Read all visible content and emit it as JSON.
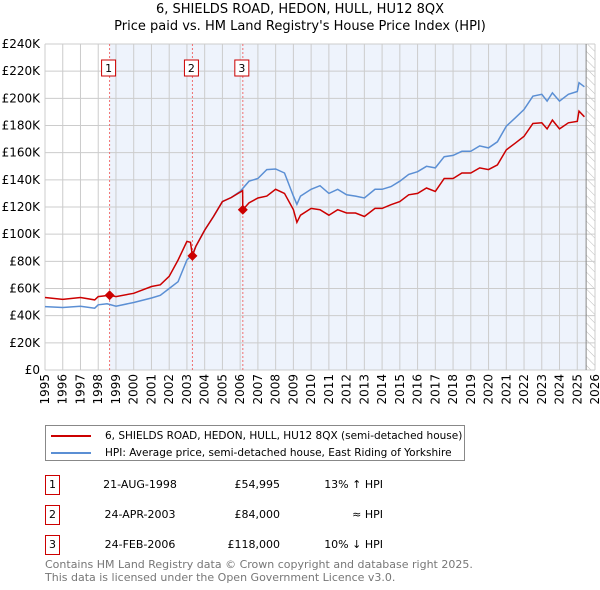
{
  "title_line1": "6, SHIELDS ROAD, HEDON, HULL, HU12 8QX",
  "title_line2": "Price paid vs. HM Land Registry's House Price Index (HPI)",
  "chart_data": {
    "type": "line",
    "xlim": [
      1995,
      2026
    ],
    "ylim": [
      0,
      240000
    ],
    "yticks": [
      0,
      20000,
      40000,
      60000,
      80000,
      100000,
      120000,
      140000,
      160000,
      180000,
      200000,
      220000,
      240000
    ],
    "ytick_labels": [
      "£0",
      "£20K",
      "£40K",
      "£60K",
      "£80K",
      "£100K",
      "£120K",
      "£140K",
      "£160K",
      "£180K",
      "£200K",
      "£220K",
      "£240K"
    ],
    "xticks": [
      1995,
      1996,
      1997,
      1998,
      1999,
      2000,
      2001,
      2002,
      2003,
      2004,
      2005,
      2006,
      2007,
      2008,
      2009,
      2010,
      2011,
      2012,
      2013,
      2014,
      2015,
      2016,
      2017,
      2018,
      2019,
      2020,
      2021,
      2022,
      2023,
      2024,
      2025,
      2026
    ],
    "data_end": 2025.5,
    "series": [
      {
        "name": "6, SHIELDS ROAD, HEDON, HULL, HU12 8QX (semi-detached house)",
        "color": "#cc0000",
        "x": [
          1995,
          1996,
          1997,
          1997.8,
          1998,
          1998.64,
          1999,
          2000,
          2001,
          2001.5,
          2002,
          2002.5,
          2003,
          2003.2,
          2003.31,
          2003.5,
          2004,
          2004.5,
          2005,
          2005.5,
          2006,
          2006.14,
          2006.15,
          2006.5,
          2007,
          2007.5,
          2008,
          2008.5,
          2009,
          2009.2,
          2009.4,
          2010,
          2010.5,
          2011,
          2011.5,
          2012,
          2012.5,
          2013,
          2013.6,
          2014,
          2014.5,
          2015,
          2015.5,
          2016,
          2016.5,
          2017,
          2017.5,
          2018,
          2018.5,
          2019,
          2019.5,
          2020,
          2020.5,
          2021,
          2021.5,
          2022,
          2022.5,
          2023,
          2023.3,
          2023.6,
          2024,
          2024.5,
          2025,
          2025.1,
          2025.4
        ],
        "y": [
          53400,
          52000,
          53400,
          51600,
          54000,
          54995,
          54000,
          56500,
          61500,
          62700,
          69000,
          81000,
          94700,
          94000,
          84000,
          91000,
          103000,
          113000,
          124000,
          127000,
          131000,
          132000,
          118000,
          123000,
          126600,
          128000,
          133000,
          130000,
          118000,
          108700,
          114000,
          119000,
          118000,
          114000,
          118000,
          115600,
          115600,
          113000,
          119000,
          119000,
          121700,
          124000,
          129000,
          130000,
          134000,
          131500,
          141000,
          141000,
          145000,
          145000,
          148800,
          147500,
          151000,
          162000,
          167000,
          172000,
          181500,
          182000,
          177500,
          184000,
          177500,
          182000,
          183000,
          190600,
          186400
        ]
      },
      {
        "name": "HPI: Average price, semi-detached house, East Riding of Yorkshire",
        "color": "#5b8fd4",
        "x": [
          1995,
          1996,
          1997,
          1997.8,
          1998,
          1998.5,
          1999,
          2000,
          2001,
          2001.5,
          2002,
          2002.5,
          2003,
          2003.3,
          2003.5,
          2004,
          2004.5,
          2005,
          2005.5,
          2006,
          2006.5,
          2007,
          2007.5,
          2008,
          2008.5,
          2009,
          2009.2,
          2009.4,
          2010,
          2010.5,
          2011,
          2011.5,
          2012,
          2012.5,
          2013,
          2013.6,
          2014,
          2014.5,
          2015,
          2015.5,
          2016,
          2016.5,
          2017,
          2017.5,
          2018,
          2018.5,
          2019,
          2019.5,
          2020,
          2020.5,
          2021,
          2021.5,
          2022,
          2022.5,
          2023,
          2023.3,
          2023.6,
          2024,
          2024.5,
          2025,
          2025.1,
          2025.4
        ],
        "y": [
          46700,
          46000,
          47000,
          45500,
          48000,
          48700,
          47000,
          49700,
          53000,
          55000,
          60000,
          65000,
          81000,
          85000,
          91000,
          103000,
          113000,
          124000,
          127000,
          131500,
          139000,
          141000,
          147500,
          148000,
          145000,
          128000,
          122000,
          128000,
          133000,
          135700,
          130000,
          133000,
          129000,
          128000,
          126600,
          133000,
          133000,
          135000,
          139000,
          144000,
          146000,
          150000,
          148800,
          157000,
          158000,
          161000,
          161000,
          165000,
          163500,
          168000,
          179500,
          185600,
          191800,
          201600,
          203000,
          198000,
          204000,
          198000,
          203000,
          205000,
          211500,
          208500
        ]
      }
    ],
    "sales": [
      {
        "label": "1",
        "x": 1998.64,
        "price": 54995
      },
      {
        "label": "2",
        "x": 2003.31,
        "price": 84000
      },
      {
        "label": "3",
        "x": 2006.15,
        "price": 118000
      }
    ]
  },
  "legend": {
    "property": "6, SHIELDS ROAD, HEDON, HULL, HU12 8QX (semi-detached house)",
    "hpi": "HPI: Average price, semi-detached house, East Riding of Yorkshire"
  },
  "transactions": [
    {
      "num": "1",
      "date": "21-AUG-1998",
      "price": "£54,995",
      "hpi": "13% ↑ HPI"
    },
    {
      "num": "2",
      "date": "24-APR-2003",
      "price": "£84,000",
      "hpi": "≈ HPI"
    },
    {
      "num": "3",
      "date": "24-FEB-2006",
      "price": "£118,000",
      "hpi": "10% ↓ HPI"
    }
  ],
  "footer_line1": "Contains HM Land Registry data © Crown copyright and database right 2025.",
  "footer_line2": "This data is licensed under the Open Government Licence v3.0."
}
